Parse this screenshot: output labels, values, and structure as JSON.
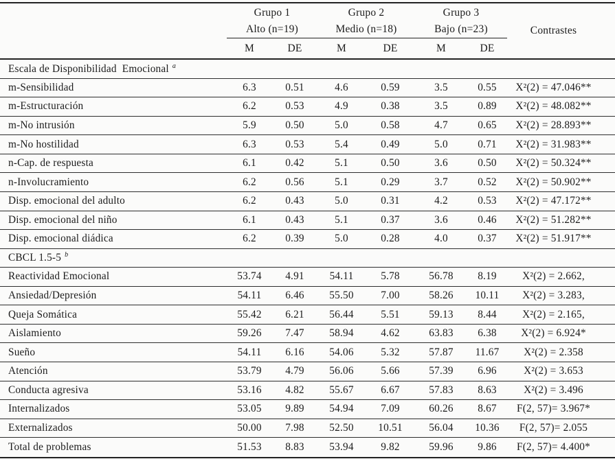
{
  "table": {
    "header": {
      "groups": [
        {
          "name": "Grupo 1",
          "subtitle": "Alto (n=19)"
        },
        {
          "name": "Grupo 2",
          "subtitle": "Medio (n=18)"
        },
        {
          "name": "Grupo 3",
          "subtitle": "Bajo (n=23)"
        }
      ],
      "stat_columns": [
        "M",
        "DE"
      ],
      "contrast_label": "Contrastes"
    },
    "sections": [
      {
        "title": "Escala de Disponibilidad  Emocional",
        "title_sup": "a",
        "rows": [
          {
            "label": "m-Sensibilidad",
            "values": [
              "6.3",
              "0.51",
              "4.6",
              "0.59",
              "3.5",
              "0.55"
            ],
            "contrast": "X²(2) = 47.046**"
          },
          {
            "label": "m-Estructuración",
            "values": [
              "6.2",
              "0.53",
              "4.9",
              "0.38",
              "3.5",
              "0.89"
            ],
            "contrast": "X²(2) = 48.082**"
          },
          {
            "label": "m-No intrusión",
            "values": [
              "5.9",
              "0.50",
              "5.0",
              "0.58",
              "4.7",
              "0.65"
            ],
            "contrast": "X²(2) = 28.893**"
          },
          {
            "label": "m-No hostilidad",
            "values": [
              "6.3",
              "0.53",
              "5.4",
              "0.49",
              "5.0",
              "0.71"
            ],
            "contrast": "X²(2) = 31.983**"
          },
          {
            "label": "n-Cap. de respuesta",
            "values": [
              "6.1",
              "0.42",
              "5.1",
              "0.50",
              "3.6",
              "0.50"
            ],
            "contrast": "X²(2) = 50.324**"
          },
          {
            "label": "n-Involucramiento",
            "values": [
              "6.2",
              "0.56",
              "5.1",
              "0.29",
              "3.7",
              "0.52"
            ],
            "contrast": "X²(2) = 50.902**"
          },
          {
            "label": "Disp. emocional del adulto",
            "values": [
              "6.2",
              "0.43",
              "5.0",
              "0.31",
              "4.2",
              "0.53"
            ],
            "contrast": "X²(2) = 47.172**"
          },
          {
            "label": "Disp. emocional del niño",
            "values": [
              "6.1",
              "0.43",
              "5.1",
              "0.37",
              "3.6",
              "0.46"
            ],
            "contrast": "X²(2) = 51.282**"
          },
          {
            "label": "Disp. emocional diádica",
            "values": [
              "6.2",
              "0.39",
              "5.0",
              "0.28",
              "4.0",
              "0.37"
            ],
            "contrast": "X²(2) = 51.917**"
          }
        ]
      },
      {
        "title": "CBCL 1.5-5",
        "title_sup": "b",
        "rows": [
          {
            "label": "Reactividad Emocional",
            "values": [
              "53.74",
              "4.91",
              "54.11",
              "5.78",
              "56.78",
              "8.19"
            ],
            "contrast": "X²(2) = 2.662,"
          },
          {
            "label": "Ansiedad/Depresión",
            "values": [
              "54.11",
              "6.46",
              "55.50",
              "7.00",
              "58.26",
              "10.11"
            ],
            "contrast": "X²(2) = 3.283,"
          },
          {
            "label": "Queja Somática",
            "values": [
              "55.42",
              "6.21",
              "56.44",
              "5.51",
              "59.13",
              "8.44"
            ],
            "contrast": "X²(2) = 2.165,"
          },
          {
            "label": "Aislamiento",
            "values": [
              "59.26",
              "7.47",
              "58.94",
              "4.62",
              "63.83",
              "6.38"
            ],
            "contrast": "X²(2) = 6.924*"
          },
          {
            "label": "Sueño",
            "values": [
              "54.11",
              "6.16",
              "54.06",
              "5.32",
              "57.87",
              "11.67"
            ],
            "contrast": "X²(2) = 2.358"
          },
          {
            "label": "Atención",
            "values": [
              "53.79",
              "4.79",
              "56.06",
              "5.66",
              "57.39",
              "6.96"
            ],
            "contrast": "X²(2) = 3.653"
          },
          {
            "label": "Conducta agresiva",
            "values": [
              "53.16",
              "4.82",
              "55.67",
              "6.67",
              "57.83",
              "8.63"
            ],
            "contrast": "X²(2) = 3.496"
          },
          {
            "label": "Internalizados",
            "values": [
              "53.05",
              "9.89",
              "54.94",
              "7.09",
              "60.26",
              "8.67"
            ],
            "contrast": "F(2, 57)= 3.967*"
          },
          {
            "label": "Externalizados",
            "values": [
              "50.00",
              "7.98",
              "52.50",
              "10.51",
              "56.04",
              "10.36"
            ],
            "contrast": "F(2, 57)= 2.055"
          },
          {
            "label": "Total de problemas",
            "values": [
              "51.53",
              "8.83",
              "53.94",
              "9.82",
              "59.96",
              "9.86"
            ],
            "contrast": "F(2, 57)= 4.400*"
          }
        ]
      }
    ]
  },
  "colors": {
    "background": "#fbfbfa",
    "text": "#1b1b1b",
    "rule": "#222222"
  }
}
